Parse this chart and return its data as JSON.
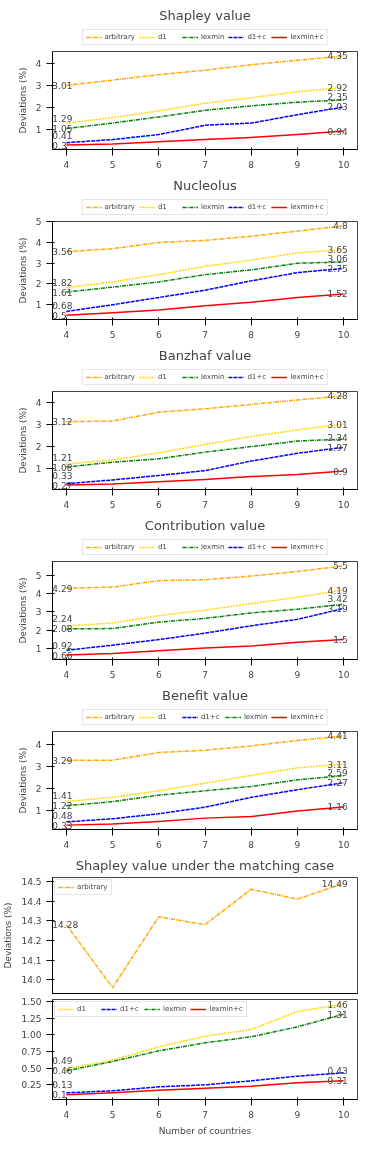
{
  "chart_data": [
    {
      "type": "line",
      "title": "Shapley value",
      "ylabel": "Deviations (%)",
      "x": [
        4,
        5,
        6,
        7,
        8,
        9,
        10
      ],
      "xlim": [
        3.7,
        10.3
      ],
      "xticks": [
        4,
        5,
        6,
        7,
        8,
        9,
        10
      ],
      "ylim": [
        0.1,
        4.55
      ],
      "yticks": [
        1,
        2,
        3,
        4
      ],
      "legend": "top",
      "series": [
        {
          "name": "arbitrary",
          "color": "#ffa500",
          "line_style": "dashdot",
          "values": [
            3.01,
            3.25,
            3.5,
            3.7,
            3.95,
            4.15,
            4.35
          ],
          "value_labels": [
            "3.01",
            null,
            null,
            null,
            null,
            null,
            "4.35"
          ]
        },
        {
          "name": "d1",
          "color": "#ffd700",
          "line_style": "dotted",
          "values": [
            1.29,
            1.55,
            1.85,
            2.2,
            2.45,
            2.72,
            2.92
          ],
          "value_labels": [
            "1.29",
            null,
            null,
            null,
            null,
            null,
            "2.92"
          ]
        },
        {
          "name": "lexmin",
          "color": "#008000",
          "line_style": "dashdot",
          "values": [
            1.05,
            1.3,
            1.58,
            1.88,
            2.08,
            2.25,
            2.35
          ],
          "value_labels": [
            "1.05",
            null,
            null,
            null,
            null,
            null,
            "2.35"
          ]
        },
        {
          "name": "d1+c",
          "color": "#0000ff",
          "line_style": "dashed",
          "values": [
            0.41,
            0.55,
            0.78,
            1.2,
            1.3,
            1.68,
            2.03
          ],
          "value_labels": [
            "0.41",
            null,
            null,
            null,
            null,
            null,
            "2.03"
          ]
        },
        {
          "name": "lexmin+c",
          "color": "#ff0000",
          "line_style": "solid",
          "values": [
            0.3,
            0.35,
            0.45,
            0.55,
            0.65,
            0.78,
            0.94
          ],
          "value_labels": [
            "0.3",
            null,
            null,
            null,
            null,
            null,
            "0.94"
          ]
        }
      ]
    },
    {
      "type": "line",
      "title": "Nucleolus",
      "ylabel": "Deviations (%)",
      "x": [
        4,
        5,
        6,
        7,
        8,
        9,
        10
      ],
      "xlim": [
        3.7,
        10.3
      ],
      "xticks": [
        4,
        5,
        6,
        7,
        8,
        9,
        10
      ],
      "ylim": [
        0.29,
        5.01
      ],
      "yticks": [
        1,
        2,
        3,
        4,
        5
      ],
      "legend": "top",
      "series": [
        {
          "name": "arbitrary",
          "color": "#ffa500",
          "line_style": "dashdot",
          "values": [
            3.56,
            3.7,
            4.0,
            4.1,
            4.3,
            4.55,
            4.8
          ],
          "value_labels": [
            "3.56",
            null,
            null,
            null,
            null,
            null,
            "4.8"
          ]
        },
        {
          "name": "d1",
          "color": "#ffd700",
          "line_style": "dotted",
          "values": [
            1.82,
            2.1,
            2.45,
            2.85,
            3.15,
            3.5,
            3.65
          ],
          "value_labels": [
            "1.82",
            null,
            null,
            null,
            null,
            null,
            "3.65"
          ]
        },
        {
          "name": "lexmin",
          "color": "#008000",
          "line_style": "dashdot",
          "values": [
            1.61,
            1.85,
            2.1,
            2.45,
            2.68,
            3.0,
            3.06
          ],
          "value_labels": [
            "1.61",
            null,
            null,
            null,
            null,
            null,
            "3.06"
          ]
        },
        {
          "name": "d1+c",
          "color": "#0000ff",
          "line_style": "dashed",
          "values": [
            0.68,
            1.0,
            1.35,
            1.7,
            2.15,
            2.55,
            2.75
          ],
          "value_labels": [
            "0.68",
            null,
            null,
            null,
            null,
            null,
            "2.75"
          ]
        },
        {
          "name": "lexmin+c",
          "color": "#ff0000",
          "line_style": "solid",
          "values": [
            0.5,
            0.62,
            0.75,
            0.95,
            1.12,
            1.35,
            1.52
          ],
          "value_labels": [
            "0.5",
            null,
            null,
            null,
            null,
            null,
            "1.52"
          ]
        }
      ]
    },
    {
      "type": "line",
      "title": "Banzhaf value",
      "ylabel": "Deviations (%)",
      "x": [
        4,
        5,
        6,
        7,
        8,
        9,
        10
      ],
      "xlim": [
        3.7,
        10.3
      ],
      "xticks": [
        4,
        5,
        6,
        7,
        8,
        9,
        10
      ],
      "ylim": [
        0.07,
        4.48
      ],
      "yticks": [
        1,
        2,
        3,
        4
      ],
      "legend": "top",
      "series": [
        {
          "name": "arbitrary",
          "color": "#ffa500",
          "line_style": "dashdot",
          "values": [
            3.12,
            3.15,
            3.55,
            3.7,
            3.9,
            4.1,
            4.28
          ],
          "value_labels": [
            "3.12",
            null,
            null,
            null,
            null,
            null,
            "4.28"
          ]
        },
        {
          "name": "d1",
          "color": "#ffd700",
          "line_style": "dotted",
          "values": [
            1.21,
            1.4,
            1.72,
            2.1,
            2.45,
            2.75,
            3.01
          ],
          "value_labels": [
            "1.21",
            null,
            null,
            null,
            null,
            null,
            "3.01"
          ]
        },
        {
          "name": "lexmin",
          "color": "#008000",
          "line_style": "dashdot",
          "values": [
            1.08,
            1.3,
            1.45,
            1.75,
            2.0,
            2.25,
            2.34
          ],
          "value_labels": [
            "1.08",
            null,
            null,
            null,
            null,
            null,
            "2.34"
          ]
        },
        {
          "name": "d1+c",
          "color": "#0000ff",
          "line_style": "dashed",
          "values": [
            0.33,
            0.5,
            0.7,
            0.92,
            1.35,
            1.7,
            1.97
          ],
          "value_labels": [
            "0.33",
            null,
            null,
            null,
            null,
            null,
            "1.97"
          ]
        },
        {
          "name": "lexmin+c",
          "color": "#ff0000",
          "line_style": "solid",
          "values": [
            0.27,
            0.32,
            0.42,
            0.52,
            0.65,
            0.75,
            0.9
          ],
          "value_labels": [
            "0.27",
            null,
            null,
            null,
            null,
            null,
            "0.9"
          ]
        }
      ]
    },
    {
      "type": "line",
      "title": "Contribution value",
      "ylabel": "Deviations (%)",
      "x": [
        4,
        5,
        6,
        7,
        8,
        9,
        10
      ],
      "xlim": [
        3.7,
        10.3
      ],
      "xticks": [
        4,
        5,
        6,
        7,
        8,
        9,
        10
      ],
      "ylim": [
        0.42,
        5.74
      ],
      "yticks": [
        1,
        2,
        3,
        4,
        5
      ],
      "legend": "top",
      "series": [
        {
          "name": "arbitrary",
          "color": "#ffa500",
          "line_style": "dashdot",
          "values": [
            4.29,
            4.35,
            4.7,
            4.75,
            4.95,
            5.2,
            5.5
          ],
          "value_labels": [
            "4.29",
            null,
            null,
            null,
            null,
            null,
            "5.5"
          ]
        },
        {
          "name": "d1",
          "color": "#ffd700",
          "line_style": "dotted",
          "values": [
            2.24,
            2.4,
            2.8,
            3.1,
            3.45,
            3.8,
            4.19
          ],
          "value_labels": [
            "2.24",
            null,
            null,
            null,
            null,
            null,
            "4.19"
          ]
        },
        {
          "name": "lexmin",
          "color": "#008000",
          "line_style": "dashdot",
          "values": [
            2.08,
            2.1,
            2.45,
            2.65,
            2.95,
            3.15,
            3.42
          ],
          "value_labels": [
            "2.08",
            null,
            null,
            null,
            null,
            null,
            "3.42"
          ]
        },
        {
          "name": "d1+c",
          "color": "#0000ff",
          "line_style": "dashed",
          "values": [
            0.92,
            1.2,
            1.5,
            1.85,
            2.25,
            2.6,
            3.19
          ],
          "value_labels": [
            "0.92",
            null,
            null,
            null,
            null,
            null,
            "3.19"
          ]
        },
        {
          "name": "lexmin+c",
          "color": "#ff0000",
          "line_style": "solid",
          "values": [
            0.66,
            0.75,
            0.9,
            1.05,
            1.15,
            1.35,
            1.5
          ],
          "value_labels": [
            "0.66",
            null,
            null,
            null,
            null,
            null,
            "1.5"
          ]
        }
      ]
    },
    {
      "type": "line",
      "title": "Benefit value",
      "ylabel": "Deviations (%)",
      "x": [
        4,
        5,
        6,
        7,
        8,
        9,
        10
      ],
      "xlim": [
        3.7,
        10.3
      ],
      "xticks": [
        4,
        5,
        6,
        7,
        8,
        9,
        10
      ],
      "ylim": [
        0.13,
        4.61
      ],
      "yticks": [
        1,
        2,
        3,
        4
      ],
      "legend": "top",
      "series": [
        {
          "name": "arbitrary",
          "color": "#ffa500",
          "line_style": "dashdot",
          "values": [
            3.29,
            3.3,
            3.65,
            3.75,
            3.95,
            4.2,
            4.41
          ],
          "value_labels": [
            "3.29",
            null,
            null,
            null,
            null,
            null,
            "4.41"
          ]
        },
        {
          "name": "d1",
          "color": "#ffd700",
          "line_style": "dotted",
          "values": [
            1.41,
            1.6,
            1.9,
            2.25,
            2.6,
            2.95,
            3.11
          ],
          "value_labels": [
            "1.41",
            null,
            null,
            null,
            null,
            null,
            "3.11"
          ]
        },
        {
          "name": "d1+c",
          "color": "#0000ff",
          "line_style": "dashed",
          "values": [
            0.48,
            0.62,
            0.85,
            1.15,
            1.6,
            1.95,
            2.27
          ],
          "value_labels": [
            "0.48",
            null,
            null,
            null,
            null,
            null,
            "2.27"
          ]
        },
        {
          "name": "lexmin",
          "color": "#008000",
          "line_style": "dashdot",
          "values": [
            1.22,
            1.4,
            1.7,
            1.9,
            2.1,
            2.4,
            2.59
          ],
          "value_labels": [
            "1.22",
            null,
            null,
            null,
            null,
            null,
            "2.59"
          ]
        },
        {
          "name": "lexmin+c",
          "color": "#ff0000",
          "line_style": "solid",
          "values": [
            0.33,
            0.38,
            0.5,
            0.65,
            0.72,
            0.98,
            1.16
          ],
          "value_labels": [
            "0.33",
            null,
            null,
            null,
            null,
            null,
            "1.16"
          ]
        }
      ]
    },
    {
      "type": "line",
      "title": "Shapley value under the matching case",
      "ylabel": "Deviations (%)",
      "x": [
        4,
        5,
        6,
        7,
        8,
        9,
        10
      ],
      "xlim": [
        3.7,
        10.3
      ],
      "ylim": [
        13.93,
        14.52
      ],
      "yticks": [
        {
          "value": 14.0,
          "label": "14.0"
        },
        14.1,
        14.2,
        14.3,
        14.4,
        14.5
      ],
      "tick_labels": "y",
      "legend": "top left",
      "series": [
        {
          "name": "arbitrary",
          "color": "#ffa500",
          "line_style": "dashdot",
          "values": [
            14.28,
            13.96,
            14.32,
            14.28,
            14.46,
            14.41,
            14.49
          ],
          "value_labels": [
            "14.28",
            null,
            null,
            null,
            null,
            null,
            "14.49"
          ]
        }
      ]
    },
    {
      "type": "line",
      "xlabel": "Number of countries",
      "x": [
        4,
        5,
        6,
        7,
        8,
        9,
        10
      ],
      "xlim": [
        3.7,
        10.3
      ],
      "xticks": [
        4,
        5,
        6,
        7,
        8,
        9,
        10
      ],
      "ylim": [
        0.03,
        1.53
      ],
      "yticks": [
        0.25,
        {
          "value": 0.5,
          "label": "0.50"
        },
        {
          "value": 0.75,
          "label": "0.75"
        },
        {
          "value": 1.0,
          "label": "1.00"
        },
        {
          "value": 1.25,
          "label": "1.25"
        },
        {
          "value": 1.5,
          "label": "1.50"
        }
      ],
      "legend": "top left",
      "series": [
        {
          "name": "d1",
          "color": "#ffd700",
          "line_style": "dotted",
          "values": [
            0.49,
            0.62,
            0.82,
            0.98,
            1.08,
            1.35,
            1.46
          ],
          "value_labels": [
            "0.49",
            null,
            null,
            null,
            null,
            null,
            "1.46"
          ]
        },
        {
          "name": "d1+c",
          "color": "#0000ff",
          "line_style": "dashed",
          "values": [
            0.13,
            0.16,
            0.22,
            0.25,
            0.31,
            0.38,
            0.43
          ],
          "value_labels": [
            "0.13",
            null,
            null,
            null,
            null,
            null,
            "0.43"
          ]
        },
        {
          "name": "lexmin",
          "color": "#008000",
          "line_style": "dashdot",
          "values": [
            0.46,
            0.6,
            0.76,
            0.88,
            0.97,
            1.12,
            1.31
          ],
          "value_labels": [
            "0.46",
            null,
            null,
            null,
            null,
            null,
            "1.31"
          ]
        },
        {
          "name": "lexmin+c",
          "color": "#ff0000",
          "line_style": "solid",
          "values": [
            0.1,
            0.13,
            0.17,
            0.2,
            0.23,
            0.28,
            0.31
          ],
          "value_labels": [
            "0.1",
            null,
            null,
            null,
            null,
            null,
            "0.31"
          ]
        }
      ]
    }
  ]
}
